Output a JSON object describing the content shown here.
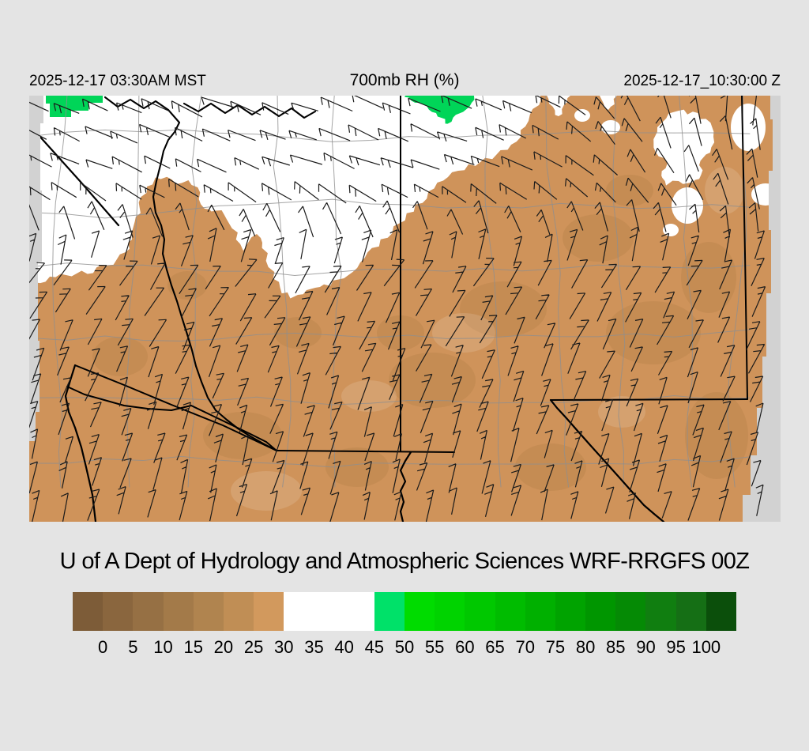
{
  "header": {
    "left_timestamp": "2025-12-17 03:30AM MST",
    "title": "700mb RH (%)",
    "right_timestamp": "2025-12-17_10:30:00 Z"
  },
  "footer": {
    "title": "U of A Dept of Hydrology and Atmospheric Sciences WRF-RRGFS 00Z"
  },
  "colorbar": {
    "units": "%",
    "tick_labels": [
      "0",
      "5",
      "10",
      "15",
      "20",
      "25",
      "30",
      "35",
      "40",
      "45",
      "50",
      "55",
      "60",
      "65",
      "70",
      "75",
      "80",
      "85",
      "90",
      "95",
      "100"
    ],
    "cell_colors": [
      "#7d5c38",
      "#8a663e",
      "#967044",
      "#a37a49",
      "#b0844f",
      "#c08e55",
      "#d2995d",
      "#ffffff",
      "#ffffff",
      "#ffffff",
      "#00e169",
      "#00dc00",
      "#00d300",
      "#00c800",
      "#00bc00",
      "#00b000",
      "#00a300",
      "#009600",
      "#058a05",
      "#107e10",
      "#156f15",
      "#0b4f0b"
    ]
  },
  "map": {
    "colors": {
      "high_rh_white": "#ffffff",
      "low_rh_brown": "#cf935a",
      "low_rh_shade": "#b5804a",
      "moist_green": "#00d558",
      "out_of_domain_gray": "#d2d2d2",
      "state_border": "#000000",
      "county_line": "#8f8f8f",
      "wind_barb": "#1a1a1a"
    },
    "description": "700mb relative humidity shaded map over Arizona / New Mexico with wind barbs, state and county borders"
  },
  "chart_data": {
    "type": "heatmap",
    "title": "700mb RH (%)",
    "colorbar_ticks": [
      0,
      5,
      10,
      15,
      20,
      25,
      30,
      35,
      40,
      45,
      50,
      55,
      60,
      65,
      70,
      75,
      80,
      85,
      90,
      95,
      100
    ],
    "colorbar_range": [
      0,
      100
    ],
    "units": "%",
    "legend_position": "bottom",
    "value_regions": {
      "dry_below_30_pct": "southern two-thirds of domain (brown)",
      "mid_30_to_45_pct": "northern band (white)",
      "moist_45_plus_pct": "small patches at far north edge (green)"
    }
  }
}
